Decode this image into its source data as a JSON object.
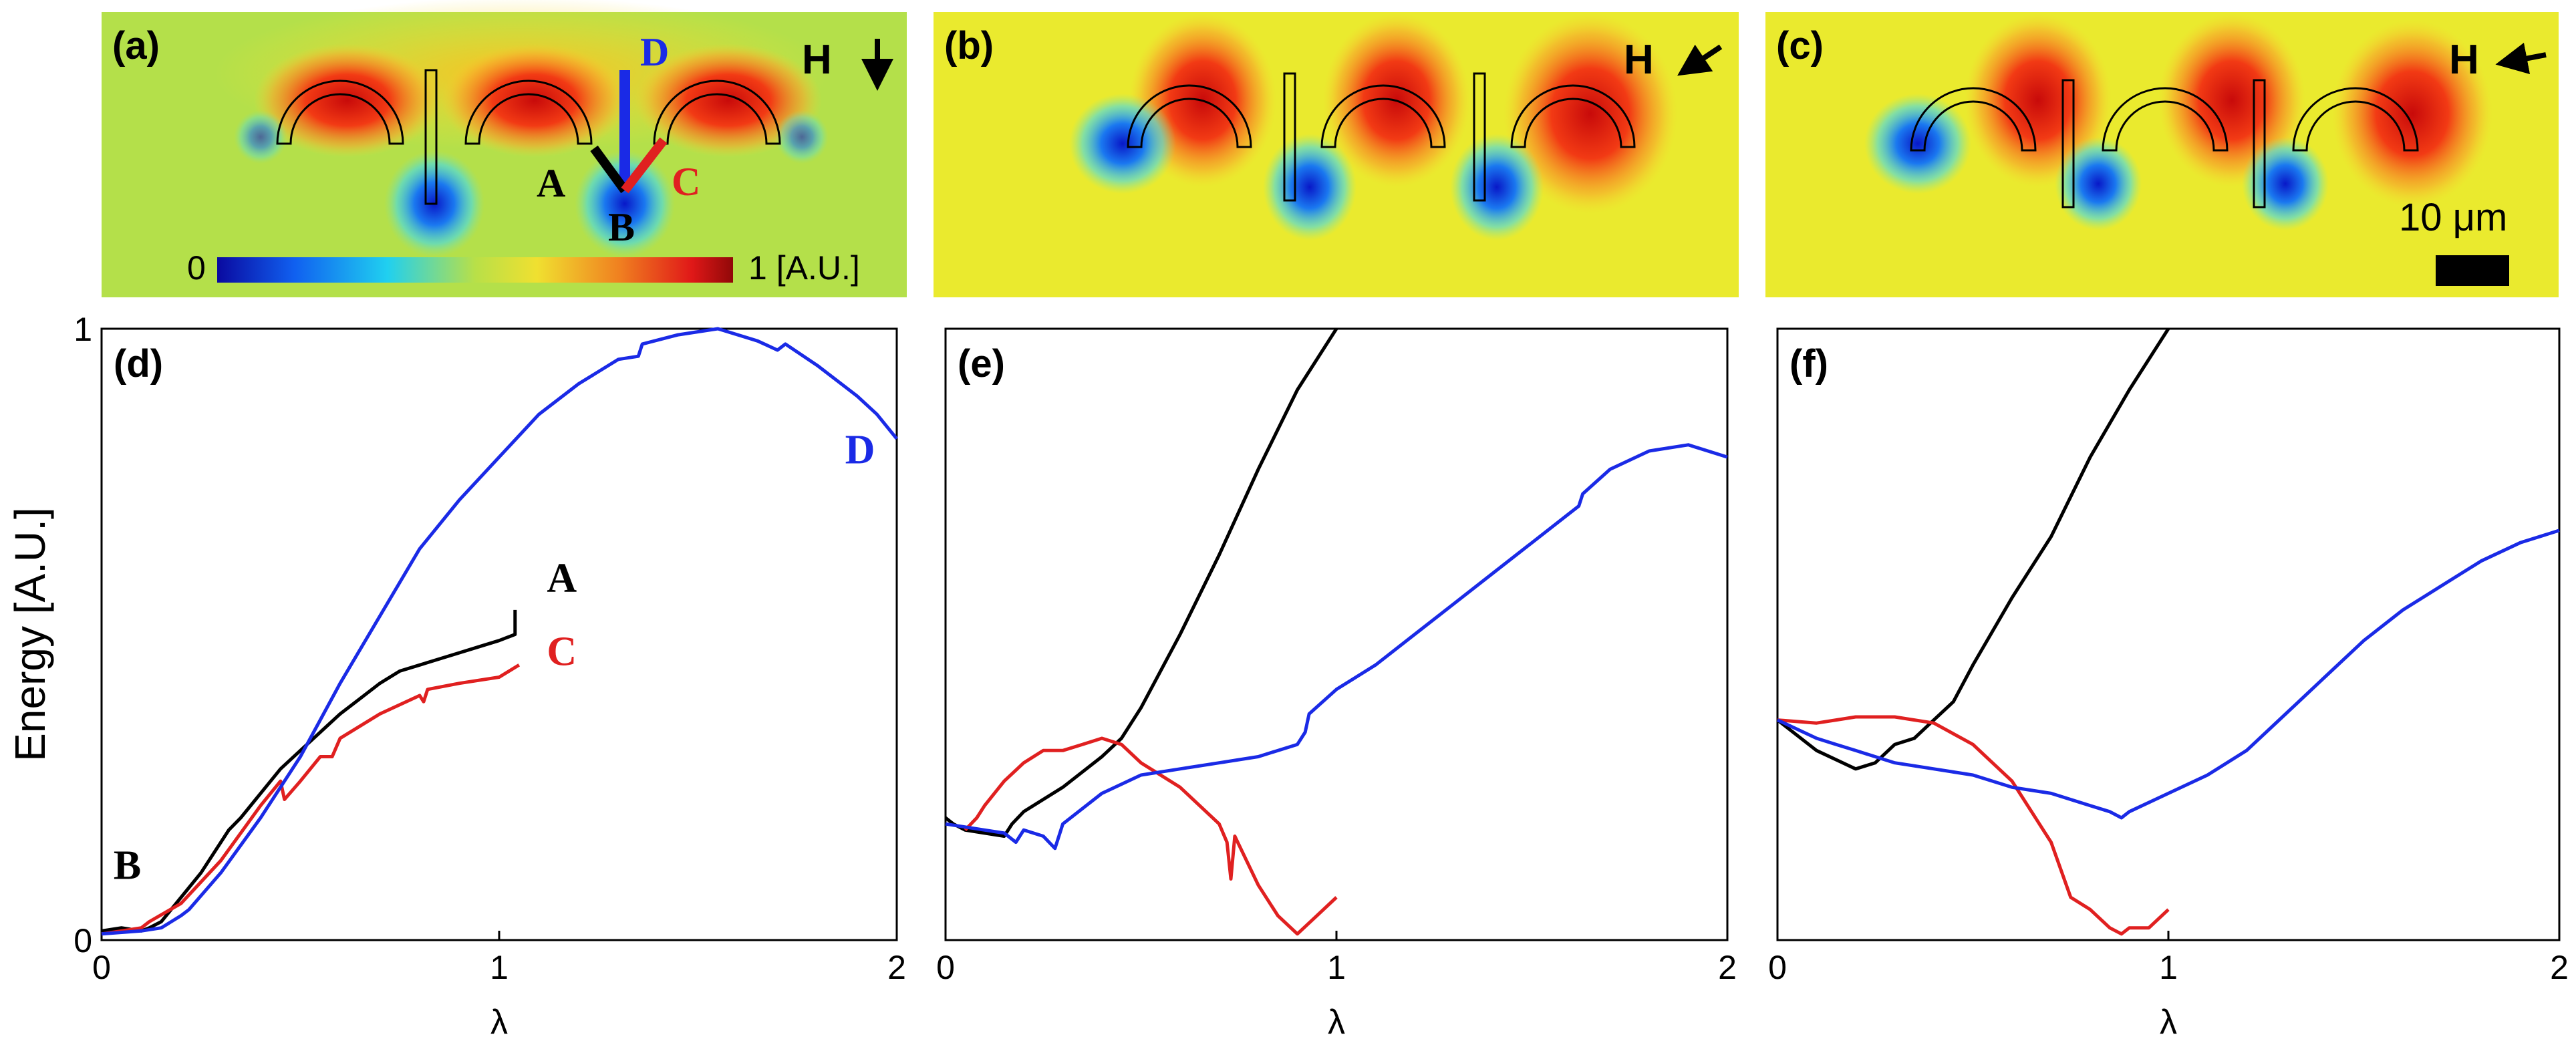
{
  "colors": {
    "line_a": "#000000",
    "line_b": "#e02020",
    "line_d": "#1a2ae6",
    "field_bg": "#b4e04a"
  },
  "field_panels": [
    {
      "label": "(a)",
      "field_label": "H",
      "field_direction": "down",
      "annotations": [
        "A",
        "B",
        "C",
        "D"
      ],
      "colorbar": {
        "min_label": "0",
        "max_label": "1 [A.U.]"
      }
    },
    {
      "label": "(b)",
      "field_label": "H",
      "field_direction": "down-left"
    },
    {
      "label": "(c)",
      "field_label": "H",
      "field_direction": "left",
      "scale_bar_label": "10 μm"
    }
  ],
  "chart_data": [
    {
      "type": "line",
      "panel": "(d)",
      "xlabel": "λ",
      "ylabel": "Energy [A.U.]",
      "xlim": [
        0,
        2
      ],
      "ylim": [
        0,
        1
      ],
      "xticks": [
        "0",
        "1",
        "2"
      ],
      "yticks": [
        "0",
        "1"
      ],
      "annotations": [
        {
          "text": "B",
          "x": 0.03,
          "y": 0.1,
          "color": "#000000"
        },
        {
          "text": "A",
          "x": 1.12,
          "y": 0.57,
          "color": "#000000"
        },
        {
          "text": "C",
          "x": 1.12,
          "y": 0.45,
          "color": "#e02020"
        },
        {
          "text": "D",
          "x": 1.87,
          "y": 0.78,
          "color": "#1a2ae6"
        }
      ],
      "series": [
        {
          "name": "A",
          "color": "#000000",
          "x": [
            0,
            0.05,
            0.1,
            0.12,
            0.15,
            0.2,
            0.25,
            0.3,
            0.32,
            0.35,
            0.4,
            0.45,
            0.5,
            0.55,
            0.6,
            0.65,
            0.7,
            0.75,
            0.8,
            0.85,
            0.9,
            0.95,
            1.0,
            1.02,
            1.04,
            1.04
          ],
          "y": [
            0.015,
            0.02,
            0.015,
            0.02,
            0.03,
            0.07,
            0.11,
            0.16,
            0.18,
            0.2,
            0.24,
            0.28,
            0.31,
            0.34,
            0.37,
            0.395,
            0.42,
            0.44,
            0.45,
            0.46,
            0.47,
            0.48,
            0.49,
            0.495,
            0.5,
            0.54
          ]
        },
        {
          "name": "C",
          "color": "#e02020",
          "x": [
            0,
            0.05,
            0.1,
            0.12,
            0.2,
            0.3,
            0.4,
            0.45,
            0.46,
            0.5,
            0.55,
            0.58,
            0.6,
            0.7,
            0.8,
            0.81,
            0.82,
            0.9,
            1.0,
            1.05
          ],
          "y": [
            0.01,
            0.015,
            0.02,
            0.03,
            0.06,
            0.13,
            0.22,
            0.26,
            0.23,
            0.26,
            0.3,
            0.3,
            0.33,
            0.37,
            0.4,
            0.39,
            0.41,
            0.42,
            0.43,
            0.45
          ]
        },
        {
          "name": "D",
          "color": "#1a2ae6",
          "x": [
            0,
            0.1,
            0.15,
            0.2,
            0.22,
            0.3,
            0.4,
            0.5,
            0.6,
            0.7,
            0.8,
            0.9,
            1.0,
            1.1,
            1.2,
            1.3,
            1.35,
            1.36,
            1.45,
            1.55,
            1.6,
            1.65,
            1.7,
            1.72,
            1.8,
            1.9,
            1.95,
            2.0
          ],
          "y": [
            0.01,
            0.015,
            0.02,
            0.04,
            0.05,
            0.11,
            0.2,
            0.3,
            0.42,
            0.53,
            0.64,
            0.72,
            0.79,
            0.86,
            0.91,
            0.95,
            0.955,
            0.975,
            0.99,
            1.0,
            0.99,
            0.98,
            0.965,
            0.975,
            0.94,
            0.89,
            0.86,
            0.82
          ]
        }
      ]
    },
    {
      "type": "line",
      "panel": "(e)",
      "xlabel": "λ",
      "ylabel": "",
      "xlim": [
        0,
        2
      ],
      "ylim": [
        0,
        1
      ],
      "xticks": [
        "0",
        "1",
        "2"
      ],
      "yticks": [],
      "series": [
        {
          "name": "A",
          "color": "#000000",
          "x": [
            0,
            0.02,
            0.05,
            0.1,
            0.15,
            0.17,
            0.2,
            0.3,
            0.4,
            0.45,
            0.5,
            0.6,
            0.7,
            0.8,
            0.9,
            1.0
          ],
          "y": [
            0.2,
            0.19,
            0.18,
            0.175,
            0.17,
            0.19,
            0.21,
            0.25,
            0.3,
            0.33,
            0.38,
            0.5,
            0.63,
            0.77,
            0.9,
            1.0
          ]
        },
        {
          "name": "C",
          "color": "#e02020",
          "x": [
            0.05,
            0.08,
            0.1,
            0.15,
            0.2,
            0.25,
            0.3,
            0.35,
            0.4,
            0.45,
            0.5,
            0.6,
            0.7,
            0.72,
            0.73,
            0.74,
            0.8,
            0.85,
            0.9,
            0.95,
            1.0
          ],
          "y": [
            0.18,
            0.2,
            0.22,
            0.26,
            0.29,
            0.31,
            0.31,
            0.32,
            0.33,
            0.32,
            0.29,
            0.25,
            0.19,
            0.16,
            0.1,
            0.17,
            0.09,
            0.04,
            0.01,
            0.04,
            0.07
          ]
        },
        {
          "name": "D",
          "color": "#1a2ae6",
          "x": [
            0,
            0.1,
            0.15,
            0.18,
            0.2,
            0.25,
            0.28,
            0.3,
            0.4,
            0.5,
            0.6,
            0.7,
            0.8,
            0.9,
            0.92,
            0.93,
            1.0,
            1.1,
            1.2,
            1.3,
            1.4,
            1.5,
            1.6,
            1.62,
            1.63,
            1.7,
            1.8,
            1.9,
            2.0
          ],
          "y": [
            0.19,
            0.18,
            0.175,
            0.16,
            0.18,
            0.17,
            0.15,
            0.19,
            0.24,
            0.27,
            0.28,
            0.29,
            0.3,
            0.32,
            0.34,
            0.37,
            0.41,
            0.45,
            0.5,
            0.55,
            0.6,
            0.65,
            0.7,
            0.71,
            0.73,
            0.77,
            0.8,
            0.81,
            0.79
          ]
        }
      ]
    },
    {
      "type": "line",
      "panel": "(f)",
      "xlabel": "λ",
      "ylabel": "",
      "xlim": [
        0,
        2
      ],
      "ylim": [
        0,
        1
      ],
      "xticks": [
        "0",
        "1",
        "2"
      ],
      "yticks": [],
      "series": [
        {
          "name": "A",
          "color": "#000000",
          "x": [
            0,
            0.1,
            0.2,
            0.25,
            0.3,
            0.35,
            0.4,
            0.45,
            0.5,
            0.6,
            0.7,
            0.8,
            0.9,
            1.0
          ],
          "y": [
            0.36,
            0.31,
            0.28,
            0.29,
            0.32,
            0.33,
            0.36,
            0.39,
            0.45,
            0.56,
            0.66,
            0.79,
            0.9,
            1.0
          ]
        },
        {
          "name": "C",
          "color": "#e02020",
          "x": [
            0,
            0.1,
            0.15,
            0.2,
            0.3,
            0.35,
            0.4,
            0.5,
            0.6,
            0.7,
            0.75,
            0.8,
            0.85,
            0.88,
            0.9,
            0.95,
            1.0
          ],
          "y": [
            0.36,
            0.355,
            0.36,
            0.365,
            0.365,
            0.36,
            0.355,
            0.32,
            0.26,
            0.16,
            0.07,
            0.05,
            0.02,
            0.01,
            0.02,
            0.02,
            0.05
          ]
        },
        {
          "name": "D",
          "color": "#1a2ae6",
          "x": [
            0,
            0.1,
            0.15,
            0.2,
            0.3,
            0.4,
            0.5,
            0.6,
            0.7,
            0.8,
            0.85,
            0.88,
            0.9,
            1.0,
            1.1,
            1.2,
            1.3,
            1.4,
            1.5,
            1.6,
            1.7,
            1.8,
            1.9,
            2.0
          ],
          "y": [
            0.36,
            0.33,
            0.32,
            0.31,
            0.29,
            0.28,
            0.27,
            0.25,
            0.24,
            0.22,
            0.21,
            0.2,
            0.21,
            0.24,
            0.27,
            0.31,
            0.37,
            0.43,
            0.49,
            0.54,
            0.58,
            0.62,
            0.65,
            0.67
          ]
        }
      ]
    }
  ]
}
